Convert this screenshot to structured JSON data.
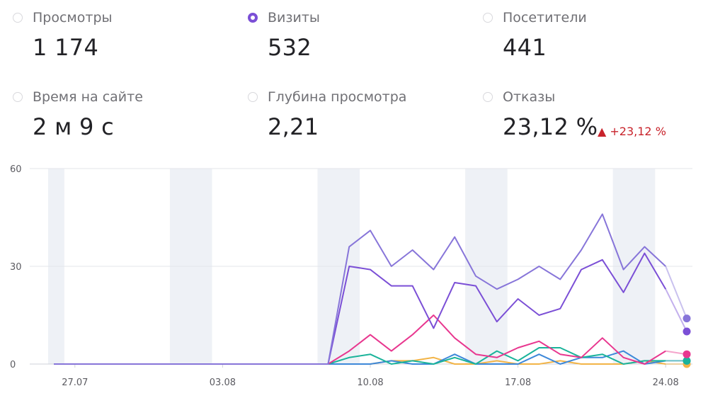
{
  "metrics": [
    {
      "label": "Просмотры",
      "value": "1 174",
      "selected": false
    },
    {
      "label": "Визиты",
      "value": "532",
      "selected": true
    },
    {
      "label": "Посетители",
      "value": "441",
      "selected": false
    },
    {
      "label": "Время на сайте",
      "value": "2 м 9 с",
      "selected": false
    },
    {
      "label": "Глубина просмотра",
      "value": "2,21",
      "selected": false
    },
    {
      "label": "Отказы",
      "value": "23,12 %",
      "selected": false,
      "delta": "▲ +23,12 %"
    }
  ],
  "colors": {
    "accent": "#7b4fd6",
    "delta_negative": "#c8232b",
    "weekend_band": "#eef1f6"
  },
  "chart_data": {
    "type": "line",
    "x": [
      "26.07",
      "27.07",
      "28.07",
      "29.07",
      "30.07",
      "31.07",
      "01.08",
      "02.08",
      "03.08",
      "04.08",
      "05.08",
      "06.08",
      "07.08",
      "08.08",
      "09.08",
      "10.08",
      "11.08",
      "12.08",
      "13.08",
      "14.08",
      "15.08",
      "16.08",
      "17.08",
      "18.08",
      "19.08",
      "20.08",
      "21.08",
      "22.08",
      "23.08",
      "24.08",
      "25.08"
    ],
    "x_tick_labels": [
      "27.07",
      "03.08",
      "10.08",
      "17.08",
      "24.08"
    ],
    "y_ticks": [
      0,
      30,
      60
    ],
    "ylim": [
      0,
      60
    ],
    "grid": true,
    "weekend_bands": [
      [
        "26.07",
        "26.07"
      ],
      [
        "01.08",
        "02.08"
      ],
      [
        "08.08",
        "09.08"
      ],
      [
        "15.08",
        "16.08"
      ],
      [
        "22.08",
        "23.08"
      ]
    ],
    "series": [
      {
        "color": "#8775d9",
        "values": [
          0,
          0,
          0,
          0,
          0,
          0,
          0,
          0,
          0,
          0,
          0,
          0,
          0,
          0,
          36,
          41,
          30,
          35,
          29,
          39,
          27,
          23,
          26,
          30,
          26,
          35,
          46,
          29,
          36,
          30,
          14
        ]
      },
      {
        "color": "#7b4fd6",
        "values": [
          0,
          0,
          0,
          0,
          0,
          0,
          0,
          0,
          0,
          0,
          0,
          0,
          0,
          0,
          30,
          29,
          24,
          24,
          11,
          25,
          24,
          13,
          20,
          15,
          17,
          29,
          32,
          22,
          34,
          23,
          10
        ]
      },
      {
        "color": "#e8378f",
        "values": [
          0,
          0,
          0,
          0,
          0,
          0,
          0,
          0,
          0,
          0,
          0,
          0,
          0,
          0,
          4,
          9,
          4,
          9,
          15,
          8,
          3,
          2,
          5,
          7,
          3,
          2,
          8,
          2,
          0,
          4,
          3
        ]
      },
      {
        "color": "#1ab39a",
        "values": [
          0,
          0,
          0,
          0,
          0,
          0,
          0,
          0,
          0,
          0,
          0,
          0,
          0,
          0,
          2,
          3,
          0,
          1,
          0,
          2,
          0,
          4,
          1,
          5,
          5,
          2,
          3,
          0,
          1,
          1,
          1
        ]
      },
      {
        "color": "#3d88d9",
        "values": [
          0,
          0,
          0,
          0,
          0,
          0,
          0,
          0,
          0,
          0,
          0,
          0,
          0,
          0,
          0,
          0,
          1,
          0,
          0,
          3,
          0,
          0,
          0,
          3,
          0,
          2,
          2,
          4,
          0,
          1,
          1
        ]
      },
      {
        "color": "#f2b447",
        "values": [
          0,
          0,
          0,
          0,
          0,
          0,
          0,
          0,
          0,
          0,
          0,
          0,
          0,
          0,
          0,
          0,
          1,
          1,
          2,
          0,
          0,
          1,
          0,
          0,
          1,
          0,
          0,
          0,
          1,
          0,
          0
        ]
      }
    ]
  }
}
